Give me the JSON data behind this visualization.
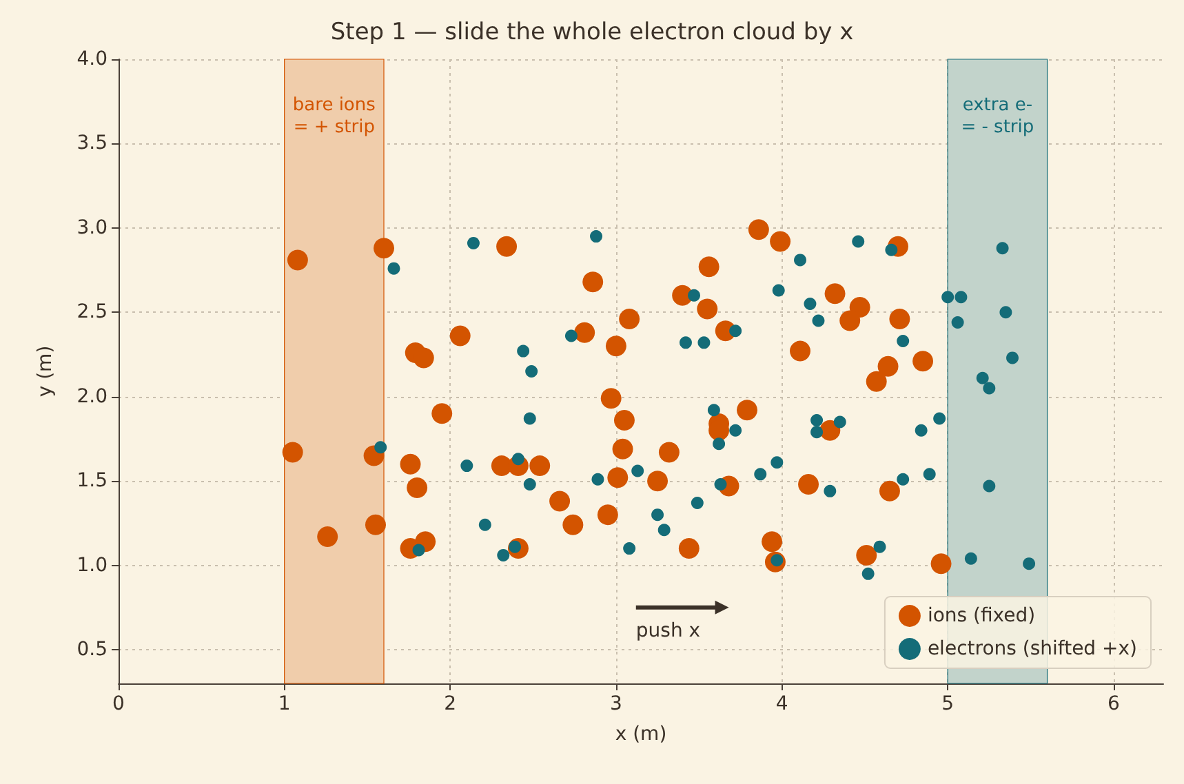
{
  "chart_data": {
    "type": "scatter",
    "title": "Step 1 — slide the whole electron cloud by x",
    "xlabel": "x (m)",
    "ylabel": "y (m)",
    "xlim": [
      0,
      6.3
    ],
    "xticks": [
      0,
      1,
      2,
      3,
      4,
      5,
      6
    ],
    "ylim": [
      0.3,
      4.0
    ],
    "yticks": [
      {
        "value": 0.5,
        "label": "0.5"
      },
      {
        "value": 1.0,
        "label": "1.0"
      },
      {
        "value": 1.5,
        "label": "1.5"
      },
      {
        "value": 2.0,
        "label": "2.0"
      },
      {
        "value": 2.5,
        "label": "2.5"
      },
      {
        "value": 3.0,
        "label": "3.0"
      },
      {
        "value": 3.5,
        "label": "3.5"
      },
      {
        "value": 4.0,
        "label": "4.0"
      }
    ],
    "grid": true,
    "legend": "bottom right",
    "marker": "circle",
    "bands": [
      {
        "axis": "x",
        "from": 1.0,
        "to": 1.6,
        "label": "bare ions\n= + strip",
        "color": "#f0cdab"
      },
      {
        "axis": "x",
        "from": 5.0,
        "to": 5.6,
        "label": "extra e-\n= - strip",
        "color": "#c2d3cb"
      }
    ],
    "annotations": [
      "push x"
    ],
    "series": [
      {
        "name": "ions (fixed)",
        "color": "#d35400",
        "x": [
          1.08,
          1.6,
          1.05,
          1.54,
          1.26,
          1.55,
          1.76,
          1.8,
          1.79,
          1.84,
          1.95,
          2.06,
          1.76,
          1.85,
          2.34,
          2.31,
          2.41,
          2.54,
          2.41,
          2.66,
          2.74,
          2.81,
          2.86,
          3.0,
          3.08,
          2.97,
          3.05,
          3.04,
          3.01,
          2.95,
          3.32,
          3.25,
          3.44,
          3.4,
          3.56,
          3.55,
          3.66,
          3.79,
          3.62,
          3.62,
          3.68,
          3.86,
          3.99,
          4.11,
          3.94,
          3.96,
          4.16,
          4.7,
          4.32,
          4.47,
          4.41,
          4.71,
          4.64,
          4.57,
          4.85,
          4.29,
          4.65,
          4.51,
          4.96
        ],
        "values": [
          2.81,
          2.88,
          1.67,
          1.65,
          1.17,
          1.24,
          1.6,
          1.46,
          2.26,
          2.23,
          1.9,
          2.36,
          1.1,
          1.14,
          2.89,
          1.59,
          1.59,
          1.59,
          1.1,
          1.38,
          1.24,
          2.38,
          2.68,
          2.3,
          2.46,
          1.99,
          1.86,
          1.69,
          1.52,
          1.3,
          1.67,
          1.5,
          1.1,
          2.6,
          2.77,
          2.52,
          2.39,
          1.92,
          1.84,
          1.8,
          1.47,
          2.99,
          2.92,
          2.27,
          1.14,
          1.02,
          1.48,
          2.89,
          2.61,
          2.53,
          2.45,
          2.46,
          2.18,
          2.09,
          2.21,
          1.8,
          1.44,
          1.06,
          1.01
        ]
      },
      {
        "name": "electrons (shifted +x)",
        "color": "#146c78",
        "x": [
          2.14,
          1.66,
          1.58,
          2.1,
          1.81,
          2.88,
          4.11,
          3.98,
          3.47,
          4.17,
          2.73,
          3.72,
          3.42,
          3.53,
          2.44,
          2.49,
          2.48,
          3.59,
          3.72,
          3.62,
          2.41,
          2.48,
          2.89,
          3.13,
          3.97,
          3.87,
          3.63,
          3.49,
          2.21,
          3.25,
          3.29,
          3.08,
          2.39,
          2.32,
          3.97,
          4.46,
          5.33,
          4.66,
          4.22,
          5.0,
          5.08,
          5.06,
          5.35,
          4.73,
          5.39,
          5.21,
          5.25,
          4.21,
          4.21,
          4.35,
          4.84,
          4.95,
          4.73,
          4.89,
          4.29,
          5.25,
          4.59,
          5.14,
          5.49,
          4.52
        ],
        "values": [
          2.91,
          2.76,
          1.7,
          1.59,
          1.09,
          2.95,
          2.81,
          2.63,
          2.6,
          2.55,
          2.36,
          2.39,
          2.32,
          2.32,
          2.27,
          2.15,
          1.87,
          1.92,
          1.8,
          1.72,
          1.63,
          1.48,
          1.51,
          1.56,
          1.61,
          1.54,
          1.48,
          1.37,
          1.24,
          1.3,
          1.21,
          1.1,
          1.11,
          1.06,
          1.03,
          2.92,
          2.88,
          2.87,
          2.45,
          2.59,
          2.59,
          2.44,
          2.5,
          2.33,
          2.23,
          2.11,
          2.05,
          1.86,
          1.79,
          1.85,
          1.8,
          1.87,
          1.51,
          1.54,
          1.44,
          1.47,
          1.11,
          1.04,
          1.01,
          0.95
        ]
      }
    ]
  }
}
